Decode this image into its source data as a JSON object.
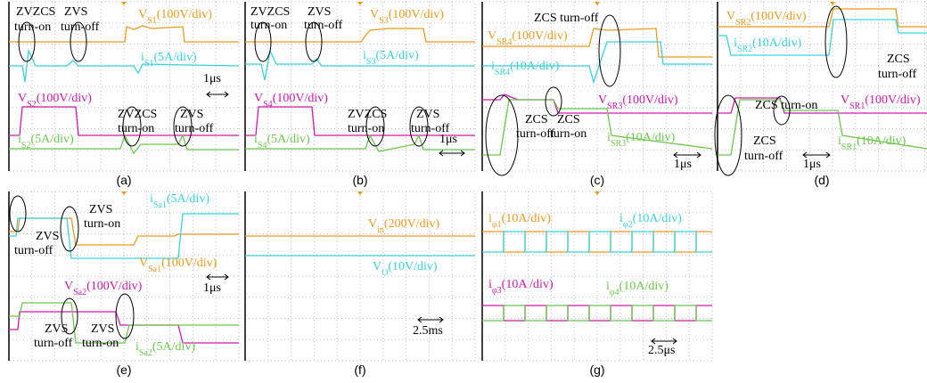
{
  "panels": [
    {
      "caption": "(a)",
      "labels": [
        {
          "parts": [
            "ZVZCS"
          ]
        },
        {
          "parts": [
            "turn-on"
          ]
        },
        {
          "parts": [
            "ZVS"
          ]
        },
        {
          "parts": [
            "turn-off"
          ]
        },
        {
          "parts": [
            "V",
            "S1",
            "(100V/div)"
          ]
        },
        {
          "parts": [
            "i",
            "S1",
            "(5A/div)"
          ]
        },
        {
          "parts": [
            "1μs"
          ]
        },
        {
          "parts": [
            "V",
            "S2",
            "(100V/div)"
          ]
        },
        {
          "parts": [
            "ZVZCS"
          ]
        },
        {
          "parts": [
            "turn-on"
          ]
        },
        {
          "parts": [
            "ZVS"
          ]
        },
        {
          "parts": [
            "turn-off"
          ]
        },
        {
          "parts": [
            "i",
            "S2",
            "(5A/div)"
          ]
        }
      ]
    },
    {
      "caption": "(b)",
      "labels": [
        {
          "parts": [
            "ZVZCS"
          ]
        },
        {
          "parts": [
            "turn-on"
          ]
        },
        {
          "parts": [
            "ZVS"
          ]
        },
        {
          "parts": [
            "turn-off"
          ]
        },
        {
          "parts": [
            "V",
            "S3",
            "(100V/div)"
          ]
        },
        {
          "parts": [
            "i",
            "S3",
            "(5A/div)"
          ]
        },
        {
          "parts": [
            "V",
            "S4",
            "(100V/div)"
          ]
        },
        {
          "parts": [
            "ZVZCS"
          ]
        },
        {
          "parts": [
            "turn-on"
          ]
        },
        {
          "parts": [
            "ZVS"
          ]
        },
        {
          "parts": [
            "turn-off"
          ]
        },
        {
          "parts": [
            "i",
            "S4",
            "(5A/div)"
          ]
        },
        {
          "parts": [
            "1μs"
          ]
        }
      ]
    },
    {
      "caption": "(c)",
      "labels": [
        {
          "parts": [
            "ZCS turn-off"
          ]
        },
        {
          "parts": [
            "V",
            "SR4",
            "(100V/div)"
          ]
        },
        {
          "parts": [
            "i",
            "SR4",
            "(10A/div)"
          ]
        },
        {
          "parts": [
            "V",
            "SR3",
            "(100V/div)"
          ]
        },
        {
          "parts": [
            "ZCS"
          ]
        },
        {
          "parts": [
            "turn-off"
          ]
        },
        {
          "parts": [
            "ZCS"
          ]
        },
        {
          "parts": [
            "turn-on"
          ]
        },
        {
          "parts": [
            "i",
            "SR3",
            "(10A/div)"
          ]
        },
        {
          "parts": [
            "1μs"
          ]
        }
      ]
    },
    {
      "caption": "(d)",
      "labels": [
        {
          "parts": [
            "V",
            "SR2",
            "(100V/div)"
          ]
        },
        {
          "parts": [
            "i",
            "SR2",
            "(10A/div)"
          ]
        },
        {
          "parts": [
            "ZCS"
          ]
        },
        {
          "parts": [
            "turn-off"
          ]
        },
        {
          "parts": [
            "ZCS turn-on"
          ]
        },
        {
          "parts": [
            "V",
            "SR1",
            "(100V/div)"
          ]
        },
        {
          "parts": [
            "ZCS"
          ]
        },
        {
          "parts": [
            "turn-off"
          ]
        },
        {
          "parts": [
            "i",
            "SR1",
            "(10A/div)"
          ]
        },
        {
          "parts": [
            "1μs"
          ]
        }
      ]
    },
    {
      "caption": "(e)",
      "labels": [
        {
          "parts": [
            "ZVS"
          ]
        },
        {
          "parts": [
            "turn-off"
          ]
        },
        {
          "parts": [
            "ZVS"
          ]
        },
        {
          "parts": [
            "turn-on"
          ]
        },
        {
          "parts": [
            "i",
            "Sa1",
            "(5A/div)"
          ]
        },
        {
          "parts": [
            "V",
            "Sa1",
            "(100V/div)"
          ]
        },
        {
          "parts": [
            "1μs"
          ]
        },
        {
          "parts": [
            "V",
            "Sa2",
            "(100V/div)"
          ]
        },
        {
          "parts": [
            "ZVS"
          ]
        },
        {
          "parts": [
            "turn-off"
          ]
        },
        {
          "parts": [
            "ZVS"
          ]
        },
        {
          "parts": [
            "turn-on"
          ]
        },
        {
          "parts": [
            "i",
            "Sa2",
            "(5A/div)"
          ]
        }
      ]
    },
    {
      "caption": "(f)",
      "labels": [
        {
          "parts": [
            "V",
            "in",
            "(200V/div)"
          ]
        },
        {
          "parts": [
            "V",
            "O",
            "(10V/div)"
          ]
        },
        {
          "parts": [
            "2.5ms"
          ]
        }
      ]
    },
    {
      "caption": "(g)",
      "labels": [
        {
          "parts": [
            "i",
            "φ1",
            "(10A/div)"
          ]
        },
        {
          "parts": [
            "i",
            "φ2",
            "(10A/div)"
          ]
        },
        {
          "parts": [
            "i",
            "φ3",
            "(10A /div)"
          ]
        },
        {
          "parts": [
            "i",
            "φ4",
            "(10A/div)"
          ]
        },
        {
          "parts": [
            "2.5μs"
          ]
        }
      ]
    }
  ]
}
